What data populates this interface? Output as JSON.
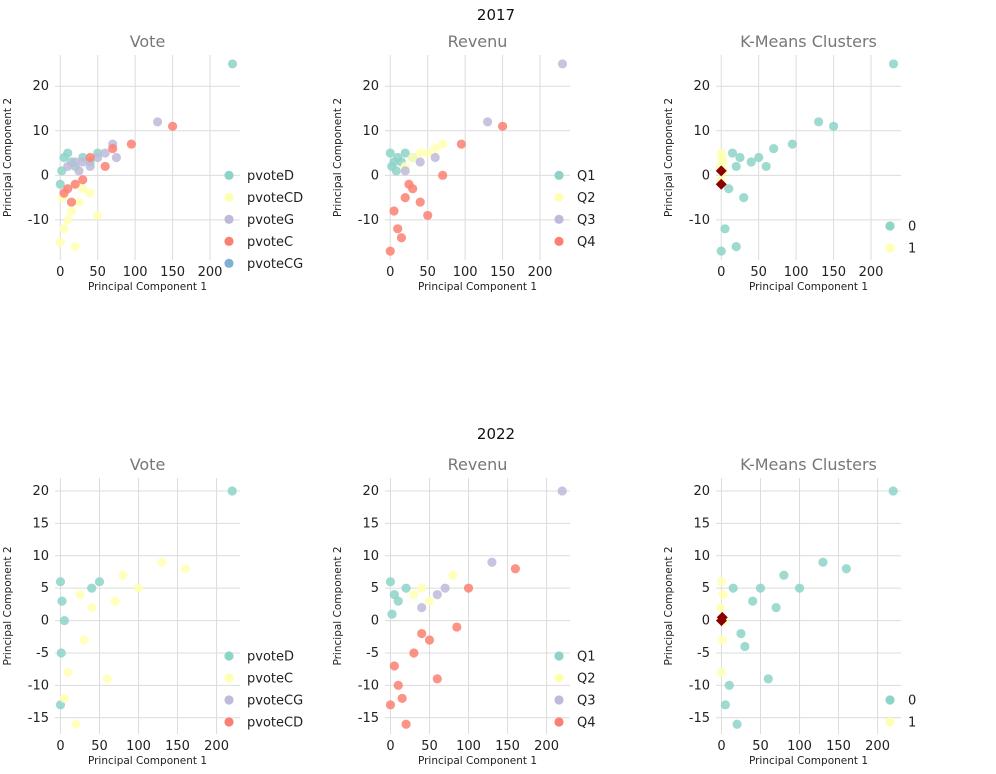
{
  "figure": {
    "row_titles": [
      "2017",
      "2022"
    ]
  },
  "chart_data": [
    {
      "type": "scatter",
      "year": "2017",
      "title": "Vote",
      "xlabel": "Principal Component 1",
      "ylabel": "Principal Component 2",
      "xlim": [
        -7,
        240
      ],
      "ylim": [
        -19,
        27
      ],
      "xticks": [
        0,
        50,
        100,
        150,
        200
      ],
      "yticks": [
        -10,
        0,
        10,
        20
      ],
      "legend_position": "right",
      "series": [
        {
          "name": "pvoteD",
          "color": "#8dd3c7",
          "points": [
            [
              230,
              25
            ],
            [
              20,
              2
            ],
            [
              5,
              4
            ],
            [
              40,
              3
            ],
            [
              10,
              5
            ],
            [
              2,
              1
            ],
            [
              0,
              -2
            ],
            [
              30,
              4
            ],
            [
              15,
              3
            ],
            [
              50,
              5
            ]
          ]
        },
        {
          "name": "pvoteCD",
          "color": "#ffffb3",
          "points": [
            [
              0,
              -15
            ],
            [
              20,
              -16
            ],
            [
              40,
              -4
            ],
            [
              10,
              -10
            ],
            [
              50,
              -9
            ],
            [
              5,
              -12
            ],
            [
              15,
              -8
            ],
            [
              25,
              -6
            ],
            [
              3,
              -5
            ],
            [
              30,
              -3
            ]
          ]
        },
        {
          "name": "pvoteG",
          "color": "#bebada",
          "points": [
            [
              130,
              12
            ],
            [
              60,
              5
            ],
            [
              70,
              7
            ],
            [
              20,
              3
            ],
            [
              40,
              2
            ],
            [
              10,
              2
            ],
            [
              50,
              4
            ],
            [
              30,
              3
            ],
            [
              25,
              1
            ],
            [
              75,
              4
            ]
          ]
        },
        {
          "name": "pvoteC",
          "color": "#fb8072",
          "points": [
            [
              150,
              11
            ],
            [
              95,
              7
            ],
            [
              70,
              6
            ],
            [
              40,
              4
            ],
            [
              20,
              -2
            ],
            [
              10,
              -3
            ],
            [
              30,
              -1
            ],
            [
              5,
              -4
            ],
            [
              60,
              2
            ],
            [
              15,
              -6
            ]
          ]
        },
        {
          "name": "pvoteCG",
          "color": "#80b1d3",
          "points": []
        }
      ]
    },
    {
      "type": "scatter",
      "year": "2017",
      "title": "Revenu",
      "xlabel": "Principal Component 1",
      "ylabel": "Principal Component 2",
      "xlim": [
        -7,
        240
      ],
      "ylim": [
        -19,
        27
      ],
      "xticks": [
        0,
        50,
        100,
        150,
        200
      ],
      "yticks": [
        -10,
        0,
        10,
        20
      ],
      "legend_position": "right",
      "series": [
        {
          "name": "Q1",
          "color": "#8dd3c7",
          "points": [
            [
              0,
              5
            ],
            [
              5,
              3
            ],
            [
              10,
              4
            ],
            [
              20,
              5
            ],
            [
              2,
              2
            ],
            [
              15,
              3
            ],
            [
              30,
              4
            ],
            [
              8,
              1
            ]
          ]
        },
        {
          "name": "Q2",
          "color": "#ffffb3",
          "points": [
            [
              40,
              5
            ],
            [
              60,
              6
            ],
            [
              70,
              7
            ],
            [
              30,
              4
            ],
            [
              50,
              5
            ],
            [
              20,
              2
            ]
          ]
        },
        {
          "name": "Q3",
          "color": "#bebada",
          "points": [
            [
              230,
              25
            ],
            [
              130,
              12
            ],
            [
              60,
              4
            ],
            [
              40,
              3
            ],
            [
              20,
              1
            ]
          ]
        },
        {
          "name": "Q4",
          "color": "#fb8072",
          "points": [
            [
              150,
              11
            ],
            [
              95,
              7
            ],
            [
              0,
              -17
            ],
            [
              10,
              -12
            ],
            [
              20,
              -5
            ],
            [
              5,
              -8
            ],
            [
              30,
              -3
            ],
            [
              50,
              -9
            ],
            [
              40,
              -6
            ],
            [
              15,
              -14
            ],
            [
              70,
              0
            ],
            [
              25,
              -2
            ]
          ]
        }
      ]
    },
    {
      "type": "scatter",
      "year": "2017",
      "title": "K-Means Clusters",
      "xlabel": "Principal Component 1",
      "ylabel": "Principal Component 2",
      "xlim": [
        -7,
        240
      ],
      "ylim": [
        -19,
        27
      ],
      "xticks": [
        0,
        50,
        100,
        150,
        200
      ],
      "yticks": [
        -10,
        0,
        10,
        20
      ],
      "legend_position": "lower-right",
      "series": [
        {
          "name": "0",
          "color": "#8dd3c7",
          "points": [
            [
              230,
              25
            ],
            [
              150,
              11
            ],
            [
              130,
              12
            ],
            [
              95,
              7
            ],
            [
              70,
              6
            ],
            [
              50,
              4
            ],
            [
              40,
              3
            ],
            [
              20,
              2
            ],
            [
              10,
              -3
            ],
            [
              5,
              -12
            ],
            [
              0,
              -17
            ],
            [
              30,
              -5
            ],
            [
              20,
              -16
            ],
            [
              60,
              2
            ],
            [
              15,
              5
            ],
            [
              25,
              4
            ]
          ]
        },
        {
          "name": "1",
          "color": "#ffffb3",
          "points": [
            [
              0,
              5
            ],
            [
              2,
              3
            ],
            [
              -1,
              2
            ],
            [
              1,
              4
            ],
            [
              0,
              -1
            ],
            [
              3,
              1
            ]
          ]
        }
      ],
      "centroids": {
        "color": "#8b0000",
        "points": [
          [
            0,
            1
          ],
          [
            0,
            -2
          ]
        ]
      }
    },
    {
      "type": "scatter",
      "year": "2022",
      "title": "Vote",
      "xlabel": "Principal Component 1",
      "ylabel": "Principal Component 2",
      "xlim": [
        -7,
        230
      ],
      "ylim": [
        -17.5,
        22
      ],
      "xticks": [
        0,
        50,
        100,
        150,
        200
      ],
      "yticks": [
        -15,
        -10,
        -5,
        0,
        5,
        10,
        15,
        20
      ],
      "legend_position": "lower-right",
      "series": [
        {
          "name": "pvoteD",
          "color": "#8dd3c7",
          "points": [
            [
              220,
              20
            ],
            [
              0,
              6
            ],
            [
              2,
              3
            ],
            [
              1,
              -5
            ],
            [
              0,
              -13
            ],
            [
              40,
              5
            ],
            [
              50,
              6
            ],
            [
              5,
              0
            ]
          ]
        },
        {
          "name": "pvoteC",
          "color": "#ffffb3",
          "points": [
            [
              130,
              9
            ],
            [
              160,
              8
            ],
            [
              100,
              5
            ],
            [
              80,
              7
            ],
            [
              60,
              -9
            ],
            [
              20,
              -16
            ],
            [
              30,
              -3
            ],
            [
              10,
              -8
            ],
            [
              40,
              2
            ],
            [
              5,
              -12
            ],
            [
              25,
              4
            ],
            [
              70,
              3
            ]
          ]
        },
        {
          "name": "pvoteCG",
          "color": "#bebada",
          "points": []
        },
        {
          "name": "pvoteCD",
          "color": "#fb8072",
          "points": []
        }
      ]
    },
    {
      "type": "scatter",
      "year": "2022",
      "title": "Revenu",
      "xlabel": "Principal Component 1",
      "ylabel": "Principal Component 2",
      "xlim": [
        -7,
        230
      ],
      "ylim": [
        -17.5,
        22
      ],
      "xticks": [
        0,
        50,
        100,
        150,
        200
      ],
      "yticks": [
        -15,
        -10,
        -5,
        0,
        5,
        10,
        15,
        20
      ],
      "legend_position": "lower-right",
      "series": [
        {
          "name": "Q1",
          "color": "#8dd3c7",
          "points": [
            [
              0,
              6
            ],
            [
              5,
              4
            ],
            [
              10,
              3
            ],
            [
              20,
              5
            ],
            [
              2,
              1
            ]
          ]
        },
        {
          "name": "Q2",
          "color": "#ffffb3",
          "points": [
            [
              40,
              5
            ],
            [
              80,
              7
            ],
            [
              30,
              4
            ],
            [
              50,
              3
            ]
          ]
        },
        {
          "name": "Q3",
          "color": "#bebada",
          "points": [
            [
              220,
              20
            ],
            [
              130,
              9
            ],
            [
              60,
              4
            ],
            [
              70,
              5
            ],
            [
              40,
              2
            ]
          ]
        },
        {
          "name": "Q4",
          "color": "#fb8072",
          "points": [
            [
              160,
              8
            ],
            [
              100,
              5
            ],
            [
              0,
              -13
            ],
            [
              10,
              -10
            ],
            [
              20,
              -16
            ],
            [
              30,
              -5
            ],
            [
              60,
              -9
            ],
            [
              50,
              -3
            ],
            [
              85,
              -1
            ],
            [
              5,
              -7
            ],
            [
              40,
              -2
            ],
            [
              15,
              -12
            ]
          ]
        }
      ]
    },
    {
      "type": "scatter",
      "year": "2022",
      "title": "K-Means Clusters",
      "xlabel": "Principal Component 1",
      "ylabel": "Principal Component 2",
      "xlim": [
        -7,
        230
      ],
      "ylim": [
        -17.5,
        22
      ],
      "xticks": [
        0,
        50,
        100,
        150,
        200
      ],
      "yticks": [
        -15,
        -10,
        -5,
        0,
        5,
        10,
        15,
        20
      ],
      "legend_position": "lower-right",
      "series": [
        {
          "name": "0",
          "color": "#8dd3c7",
          "points": [
            [
              220,
              20
            ],
            [
              160,
              8
            ],
            [
              130,
              9
            ],
            [
              100,
              5
            ],
            [
              80,
              7
            ],
            [
              60,
              -9
            ],
            [
              50,
              5
            ],
            [
              40,
              3
            ],
            [
              20,
              -16
            ],
            [
              10,
              -10
            ],
            [
              5,
              -13
            ],
            [
              30,
              -4
            ],
            [
              70,
              2
            ],
            [
              15,
              5
            ],
            [
              25,
              -2
            ]
          ]
        },
        {
          "name": "1",
          "color": "#ffffb3",
          "points": [
            [
              0,
              6
            ],
            [
              2,
              4
            ],
            [
              -1,
              2
            ],
            [
              1,
              -3
            ],
            [
              0,
              -8
            ],
            [
              3,
              0
            ]
          ]
        }
      ],
      "centroids": {
        "color": "#8b0000",
        "points": [
          [
            0,
            0
          ],
          [
            1,
            0.5
          ]
        ]
      }
    }
  ]
}
